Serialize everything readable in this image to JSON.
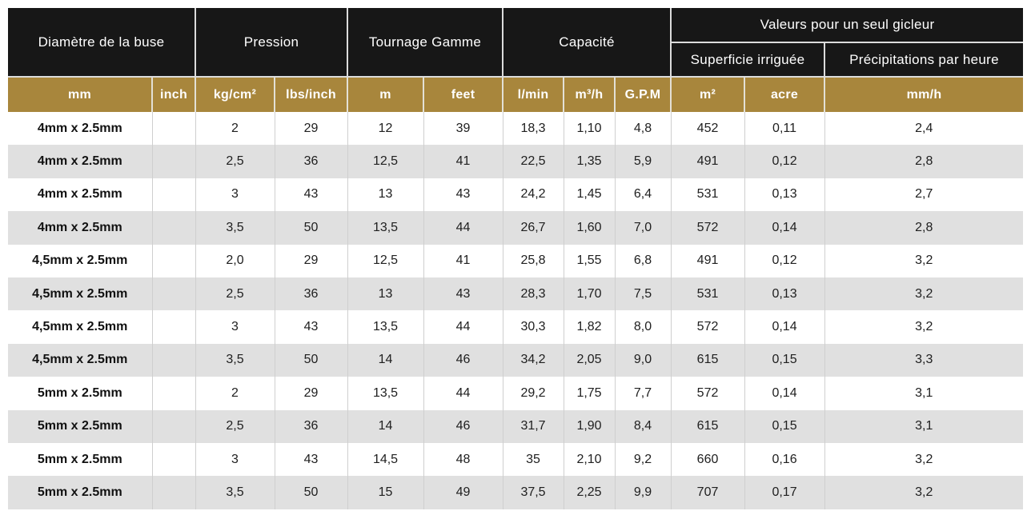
{
  "colors": {
    "header_bg": "#171717",
    "units_bg": "#a8863c",
    "stripe_bg": "#e0e0e0",
    "header_text": "#ffffff",
    "body_text": "#202020"
  },
  "chart_data": {
    "type": "table",
    "title": "",
    "column_groups": [
      "Diamètre de la buse",
      "Pression",
      "Tournage Gamme",
      "Capacité",
      "Valeurs pour un seul gicleur"
    ],
    "subheaders": [
      "Superficie irriguée",
      "Précipitations par heure"
    ],
    "columns": [
      "mm",
      "inch",
      "kg/cm²",
      "lbs/inch",
      "m",
      "feet",
      "l/min",
      "m³/h",
      "G.P.M",
      "m²",
      "acre",
      "mm/h"
    ],
    "column_keys": [
      "mm",
      "inch",
      "kg-cm2",
      "lbs-inch",
      "m",
      "feet",
      "l-min",
      "m3-h",
      "gpm",
      "m2",
      "acre",
      "mm-h"
    ],
    "rows": [
      [
        "4mm x 2.5mm",
        "",
        "2",
        "29",
        "12",
        "39",
        "18,3",
        "1,10",
        "4,8",
        "452",
        "0,11",
        "2,4"
      ],
      [
        "4mm x 2.5mm",
        "",
        "2,5",
        "36",
        "12,5",
        "41",
        "22,5",
        "1,35",
        "5,9",
        "491",
        "0,12",
        "2,8"
      ],
      [
        "4mm x 2.5mm",
        "",
        "3",
        "43",
        "13",
        "43",
        "24,2",
        "1,45",
        "6,4",
        "531",
        "0,13",
        "2,7"
      ],
      [
        "4mm x 2.5mm",
        "",
        "3,5",
        "50",
        "13,5",
        "44",
        "26,7",
        "1,60",
        "7,0",
        "572",
        "0,14",
        "2,8"
      ],
      [
        "4,5mm x 2.5mm",
        "",
        "2,0",
        "29",
        "12,5",
        "41",
        "25,8",
        "1,55",
        "6,8",
        "491",
        "0,12",
        "3,2"
      ],
      [
        "4,5mm x 2.5mm",
        "",
        "2,5",
        "36",
        "13",
        "43",
        "28,3",
        "1,70",
        "7,5",
        "531",
        "0,13",
        "3,2"
      ],
      [
        "4,5mm x 2.5mm",
        "",
        "3",
        "43",
        "13,5",
        "44",
        "30,3",
        "1,82",
        "8,0",
        "572",
        "0,14",
        "3,2"
      ],
      [
        "4,5mm x 2.5mm",
        "",
        "3,5",
        "50",
        "14",
        "46",
        "34,2",
        "2,05",
        "9,0",
        "615",
        "0,15",
        "3,3"
      ],
      [
        "5mm x 2.5mm",
        "",
        "2",
        "29",
        "13,5",
        "44",
        "29,2",
        "1,75",
        "7,7",
        "572",
        "0,14",
        "3,1"
      ],
      [
        "5mm x 2.5mm",
        "",
        "2,5",
        "36",
        "14",
        "46",
        "31,7",
        "1,90",
        "8,4",
        "615",
        "0,15",
        "3,1"
      ],
      [
        "5mm x 2.5mm",
        "",
        "3",
        "43",
        "14,5",
        "48",
        "35",
        "2,10",
        "9,2",
        "660",
        "0,16",
        "3,2"
      ],
      [
        "5mm x 2.5mm",
        "",
        "3,5",
        "50",
        "15",
        "49",
        "37,5",
        "2,25",
        "9,9",
        "707",
        "0,17",
        "3,2"
      ]
    ]
  }
}
